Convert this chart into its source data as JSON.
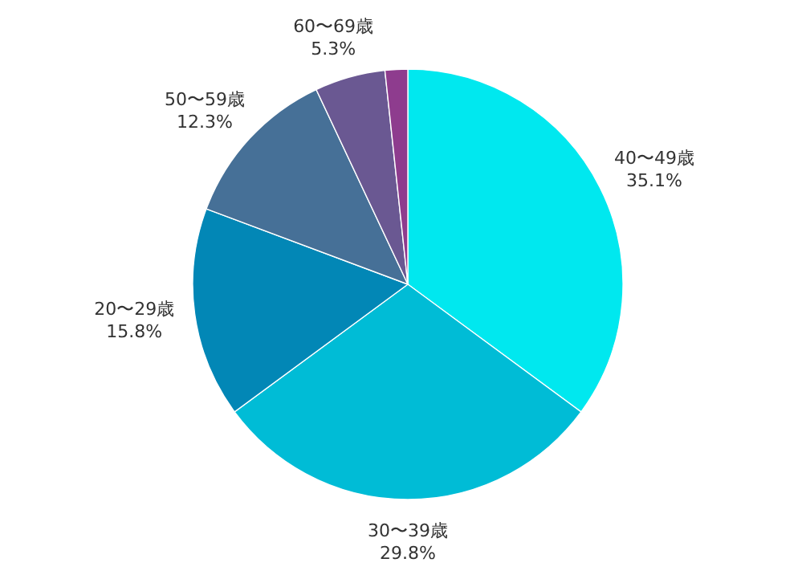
{
  "chart_data": {
    "type": "pie",
    "categories": [
      "40〜49歳",
      "30〜39歳",
      "20〜29歳",
      "50〜59歳",
      "60〜69歳",
      null
    ],
    "values": [
      35.1,
      29.8,
      15.8,
      12.3,
      5.3,
      1.7
    ],
    "value_labels": [
      "35.1%",
      "29.8%",
      "15.8%",
      "12.3%",
      "5.3%",
      null
    ],
    "colors": [
      "#00e8ef",
      "#00bcd6",
      "#0287b6",
      "#467097",
      "#6a5892",
      "#8e3c8e"
    ]
  }
}
